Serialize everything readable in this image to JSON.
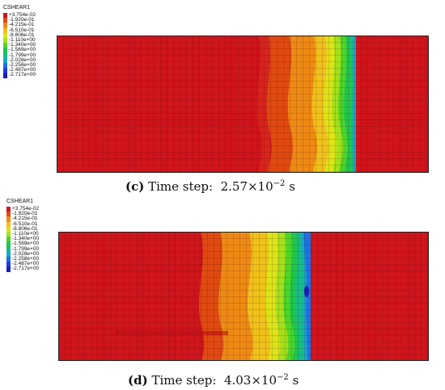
{
  "legend": {
    "title": "CSHEAR1",
    "values": [
      "+3.754e-02",
      "-1.920e-01",
      "-4.215e-01",
      "-6.510e-01",
      "-8.806e-01",
      "-1.110e+00",
      "-1.340e+00",
      "-1.569e+00",
      "-1.799e+00",
      "-2.028e+00",
      "-2.258e+00",
      "-2.487e+00",
      "-2.717e+00"
    ],
    "colors": [
      "#d0141b",
      "#e04a10",
      "#ee8a14",
      "#f0c11a",
      "#dce418",
      "#a4e01c",
      "#4ed52a",
      "#1ec64e",
      "#14bd8a",
      "#18a7c8",
      "#1b72e6",
      "#1b3fe0",
      "#1b1fb8"
    ]
  },
  "panels": [
    {
      "letter": "(c)",
      "label": "Time step:",
      "mantissa": "2.57×10",
      "exponent": "−2",
      "unit": "s"
    },
    {
      "letter": "(d)",
      "label": "Time step:",
      "mantissa": "4.03×10",
      "exponent": "−2",
      "unit": "s"
    }
  ]
}
